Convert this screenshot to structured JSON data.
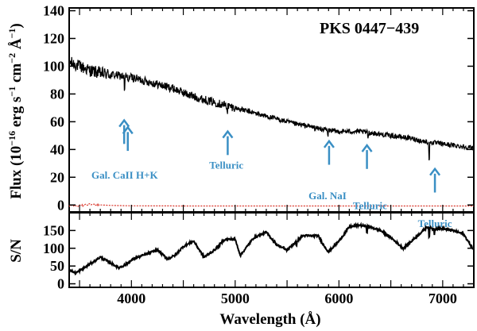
{
  "chart_data": {
    "type": "line",
    "title": "PKS 0447−439",
    "xlabel": "Wavelength (Å)",
    "xlim": [
      3400,
      7300
    ],
    "x_ticks": [
      4000,
      5000,
      6000,
      7000
    ],
    "panels": [
      {
        "name": "flux",
        "ylabel": "Flux (10",
        "ylabel_exp": "−16",
        "ylabel_units": " erg s",
        "ylabel_units_exp": "−1",
        "ylabel_units2": " cm",
        "ylabel_units2_exp": "−2",
        "ylabel_units3": " Å",
        "ylabel_units3_exp": "−1",
        "ylabel_end": ")",
        "ylim": [
          -5,
          142
        ],
        "y_ticks": [
          0,
          20,
          40,
          60,
          80,
          100,
          120,
          140
        ],
        "series": [
          {
            "name": "spectrum",
            "color": "#000000",
            "x": [
              3400,
              3500,
              3600,
              3700,
              3800,
              3900,
              4000,
              4100,
              4200,
              4300,
              4400,
              4500,
              4600,
              4700,
              4800,
              4900,
              5000,
              5100,
              5200,
              5300,
              5400,
              5500,
              5600,
              5700,
              5800,
              5900,
              6000,
              6100,
              6200,
              6300,
              6400,
              6500,
              6600,
              6700,
              6800,
              6900,
              7000,
              7100,
              7200,
              7300
            ],
            "y": [
              103,
              100,
              97,
              95,
              94,
              93,
              92,
              90,
              88,
              86,
              84,
              81,
              78,
              76,
              74,
              72,
              70,
              68,
              66,
              64,
              62,
              60,
              58,
              57,
              55,
              54,
              53,
              53,
              53,
              52,
              51,
              50,
              49,
              48,
              46,
              45,
              44,
              43,
              42,
              41
            ]
          },
          {
            "name": "error",
            "color": "#d9352a",
            "x": [
              3400,
              3500,
              3600,
              3800,
              4000,
              4500,
              5000,
              5500,
              6000,
              6500,
              7000,
              7300
            ],
            "y": [
              -0.5,
              -0.6,
              0.4,
              -0.3,
              -0.6,
              -0.7,
              -0.7,
              -0.7,
              -0.7,
              -0.7,
              -0.7,
              -0.7
            ]
          }
        ],
        "features": [
          {
            "name": "Gal. CaII H+K",
            "wavelength": 3934,
            "depth": 14
          },
          {
            "name": "Gal. CaII H+K",
            "wavelength": 3968,
            "depth": 6
          },
          {
            "name": "Telluric",
            "wavelength": 4924,
            "depth": 5
          },
          {
            "name": "Gal. NaI",
            "wavelength": 5893,
            "depth": 6
          },
          {
            "name": "Telluric",
            "wavelength": 6280,
            "depth": 4
          },
          {
            "name": "Telluric",
            "wavelength": 6870,
            "depth": 18
          }
        ],
        "annotations": [
          {
            "text": "Gal. CaII H+K",
            "wavelength": 3935,
            "flux": 22
          },
          {
            "text": "Telluric",
            "wavelength": 4915,
            "flux": 29
          },
          {
            "text": "Gal. NaI",
            "wavelength": 5890,
            "flux": 7
          },
          {
            "text": "Telluric",
            "wavelength": 6300,
            "flux": 0
          },
          {
            "text": "Telluric",
            "wavelength": 6925,
            "flux": -13
          }
        ],
        "arrows": [
          {
            "wavelength": 3930,
            "flux_tip": 61,
            "flux_tail": 44
          },
          {
            "wavelength": 3965,
            "flux_tip": 56,
            "flux_tail": 39
          },
          {
            "wavelength": 4928,
            "flux_tip": 53,
            "flux_tail": 36
          },
          {
            "wavelength": 5905,
            "flux_tip": 46,
            "flux_tail": 29
          },
          {
            "wavelength": 6270,
            "flux_tip": 43,
            "flux_tail": 26
          },
          {
            "wavelength": 6925,
            "flux_tip": 26,
            "flux_tail": 9
          }
        ]
      },
      {
        "name": "signal_to_noise",
        "ylabel": "S/N",
        "ylim": [
          -10,
          200
        ],
        "y_ticks": [
          0,
          50,
          100,
          150
        ],
        "series": [
          {
            "name": "S/N",
            "color": "#000000",
            "x": [
              3400,
              3460,
              3520,
              3700,
              3880,
              3950,
              4020,
              4250,
              4350,
              4420,
              4500,
              4600,
              4700,
              4800,
              4900,
              5000,
              5050,
              5180,
              5300,
              5400,
              5500,
              5650,
              5800,
              5850,
              5900,
              6000,
              6100,
              6200,
              6300,
              6400,
              6500,
              6620,
              6700,
              6850,
              6900,
              7000,
              7100,
              7200,
              7300
            ],
            "y": [
              40,
              30,
              40,
              75,
              45,
              55,
              70,
              95,
              70,
              80,
              105,
              120,
              75,
              95,
              125,
              125,
              80,
              130,
              145,
              110,
              95,
              135,
              135,
              110,
              90,
              120,
              160,
              165,
              160,
              150,
              130,
              100,
              120,
              160,
              155,
              155,
              150,
              140,
              95
            ]
          }
        ]
      }
    ]
  }
}
